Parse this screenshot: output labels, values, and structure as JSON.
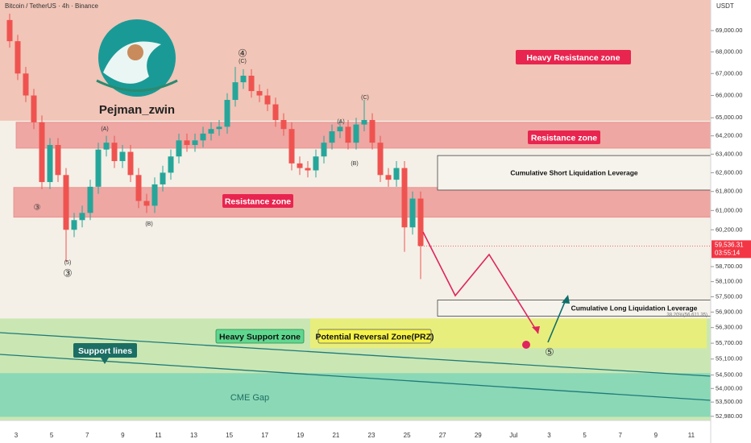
{
  "chart_data": {
    "type": "candlestick",
    "title": "Bitcoin / TetherUS · 4h · Binance",
    "currency": "USDT",
    "author": "Pejman_zwin",
    "log_scale": true,
    "ylim": [
      52830,
      70460
    ],
    "yticks": [
      {
        "value": 69000,
        "label": "69,000.00"
      },
      {
        "value": 68000,
        "label": "68,000.00"
      },
      {
        "value": 67000,
        "label": "67,000.00"
      },
      {
        "value": 66000,
        "label": "66,000.00"
      },
      {
        "value": 65000,
        "label": "65,000.00"
      },
      {
        "value": 64200,
        "label": "64,200.00"
      },
      {
        "value": 63400,
        "label": "63,400.00"
      },
      {
        "value": 62600,
        "label": "62,600.00"
      },
      {
        "value": 61800,
        "label": "61,800.00"
      },
      {
        "value": 61000,
        "label": "61,000.00"
      },
      {
        "value": 60200,
        "label": "60,200.00"
      },
      {
        "value": 58700,
        "label": "58,700.00"
      },
      {
        "value": 58100,
        "label": "58,100.00"
      },
      {
        "value": 57500,
        "label": "57,500.00"
      },
      {
        "value": 56900,
        "label": "56,900.00"
      },
      {
        "value": 56300,
        "label": "56,300.00"
      },
      {
        "value": 55700,
        "label": "55,700.00"
      },
      {
        "value": 55100,
        "label": "55,100.00"
      },
      {
        "value": 54500,
        "label": "54,500.00"
      },
      {
        "value": 54000,
        "label": "54,000.00"
      },
      {
        "value": 53500,
        "label": "53,500.00"
      },
      {
        "value": 52980,
        "label": "52,980.00"
      }
    ],
    "xtick_labels": [
      "3",
      "5",
      "7",
      "9",
      "11",
      "13",
      "15",
      "17",
      "19",
      "21",
      "23",
      "25",
      "27",
      "29",
      "Jul",
      "3",
      "5",
      "7",
      "9",
      "11"
    ],
    "up_color": "#26a69a",
    "down_color": "#ef5350",
    "open": [
      69500,
      68500,
      67000,
      66000,
      64800,
      62200,
      63800,
      62500,
      60200,
      60600,
      60900,
      62000,
      63600,
      63900,
      63100,
      63500,
      62500,
      61400,
      61200,
      62100,
      62600,
      63300,
      64000,
      63800,
      64000,
      64300,
      64500,
      64600,
      65800,
      66600,
      66900,
      66200,
      66000,
      65600,
      64900,
      64500,
      63000,
      62800,
      62700,
      63300,
      63900,
      64400,
      64600,
      63900,
      64700,
      64900,
      63900,
      62500,
      62300,
      62800,
      60300,
      61500
    ],
    "high": [
      69800,
      68800,
      67300,
      66300,
      65100,
      64100,
      64100,
      62800,
      60900,
      61200,
      62300,
      63900,
      64200,
      64200,
      63800,
      63800,
      62800,
      61700,
      62400,
      62900,
      63600,
      64300,
      64300,
      64300,
      64600,
      64800,
      64900,
      66100,
      67300,
      67200,
      67200,
      66500,
      66300,
      65900,
      65200,
      64800,
      63300,
      63100,
      63600,
      64200,
      64700,
      64900,
      64900,
      65000,
      65800,
      65200,
      64200,
      62800,
      63100,
      63100,
      61800,
      61800
    ],
    "low": [
      68200,
      66700,
      65700,
      64500,
      61900,
      61900,
      62200,
      58900,
      59900,
      60300,
      60600,
      61700,
      63300,
      62800,
      62800,
      62200,
      61100,
      60900,
      60900,
      61800,
      62300,
      63000,
      63500,
      63500,
      63700,
      64000,
      64200,
      64300,
      65500,
      66300,
      65900,
      65700,
      65300,
      64600,
      64200,
      62700,
      62500,
      62400,
      62400,
      63000,
      63600,
      64100,
      63600,
      63600,
      64400,
      63600,
      62200,
      62000,
      62000,
      59300,
      60000,
      58200
    ],
    "close": [
      68500,
      67000,
      66000,
      64800,
      62200,
      63800,
      62500,
      60200,
      60600,
      60900,
      62000,
      63600,
      63900,
      63100,
      63500,
      62500,
      61400,
      61200,
      62100,
      62600,
      63300,
      64000,
      63800,
      64000,
      64300,
      64500,
      64600,
      65800,
      66600,
      66900,
      66200,
      66000,
      65600,
      64900,
      64500,
      63000,
      62800,
      62700,
      63300,
      63900,
      64400,
      64600,
      63900,
      64700,
      64900,
      63900,
      62500,
      62300,
      62800,
      60300,
      61500,
      59536.31
    ],
    "last_price": {
      "value": 59536.31,
      "label": "59,536.31"
    },
    "countdown": "03:55:14",
    "fib_label": "38.20%(56,611.35)",
    "zones": [
      {
        "from": 64870,
        "to": 70460,
        "color": "#f0c2b4"
      },
      {
        "from": 63660,
        "to": 64800,
        "color": "#eea7a3"
      },
      {
        "from": 60720,
        "to": 61970,
        "color": "#eea7a3"
      },
      {
        "from": 52830,
        "to": 56650,
        "color": "#c7e6b0"
      },
      {
        "from": 55510,
        "to": 56650,
        "color": "#e8ee7c"
      },
      {
        "from": 52960,
        "to": 54570,
        "color": "#86d7b6"
      },
      {
        "from": 61860,
        "to": 63340,
        "color": "#f5f3ec"
      },
      {
        "from": 56740,
        "to": 57370,
        "color": "#f5f3ec"
      }
    ],
    "annotations": [
      "Heavy Resistance zone",
      "Resistance zone",
      "Resistance zone",
      "Cumulative Short Liquidation Leverage",
      "Cumulative Long Liquidation Leverage",
      "Heavy Support zone",
      "Potential Reversal Zone(PRZ)",
      "Support lines",
      "CME Gap"
    ],
    "wave_labels": [
      "④",
      "(C)",
      "③",
      "⑤",
      "(A)",
      "(B)",
      "(C)",
      "(A)",
      "(B)",
      "③",
      "(5)"
    ]
  }
}
